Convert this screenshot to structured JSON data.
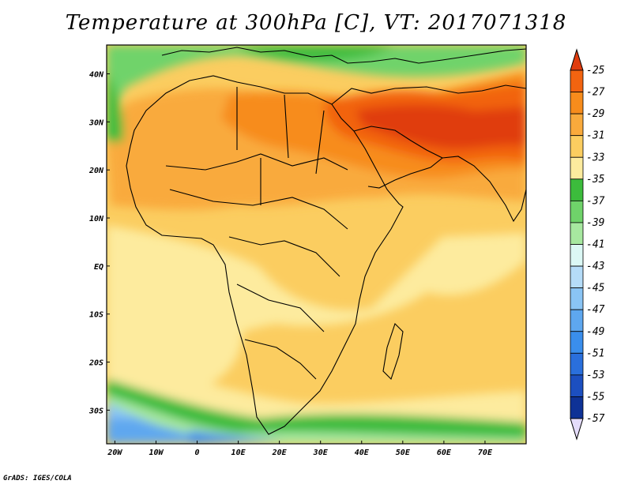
{
  "title": "Temperature at 300hPa [C], VT: 2017071318",
  "credit": "GrADS: IGES/COLA",
  "map": {
    "region": "Africa and Middle East",
    "variable": "temperature",
    "level": "300hPa",
    "units": "C",
    "valid_time": "2017071318",
    "lon_range": [
      -22,
      80
    ],
    "lat_range": [
      -37,
      46
    ],
    "lon_ticks": [
      "20W",
      "10W",
      "0",
      "10E",
      "20E",
      "30E",
      "40E",
      "50E",
      "60E",
      "70E"
    ],
    "lat_ticks": [
      "40N",
      "30N",
      "20N",
      "10N",
      "EQ",
      "10S",
      "20S",
      "30S"
    ]
  },
  "colorbar": {
    "orientation": "vertical",
    "placement": "right",
    "labels": [
      "-25",
      "-27",
      "-29",
      "-31",
      "-33",
      "-35",
      "-37",
      "-39",
      "-41",
      "-43",
      "-45",
      "-47",
      "-49",
      "-51",
      "-53",
      "-55",
      "-57"
    ],
    "colors": [
      "#e03c0e",
      "#f26410",
      "#f78c1c",
      "#f9aa3c",
      "#fbcd60",
      "#fdeb9e",
      "#3cbc3c",
      "#6fd36a",
      "#a7e8a0",
      "#dcf8f5",
      "#b5dcf8",
      "#8ac4f4",
      "#5ea7ef",
      "#3a8eec",
      "#2a6fdc",
      "#1c4fc0",
      "#0e3296",
      "#0b1b6e"
    ],
    "cap_top_color": "#e03c0e",
    "cap_bottom_color": "#e4dcfa"
  }
}
